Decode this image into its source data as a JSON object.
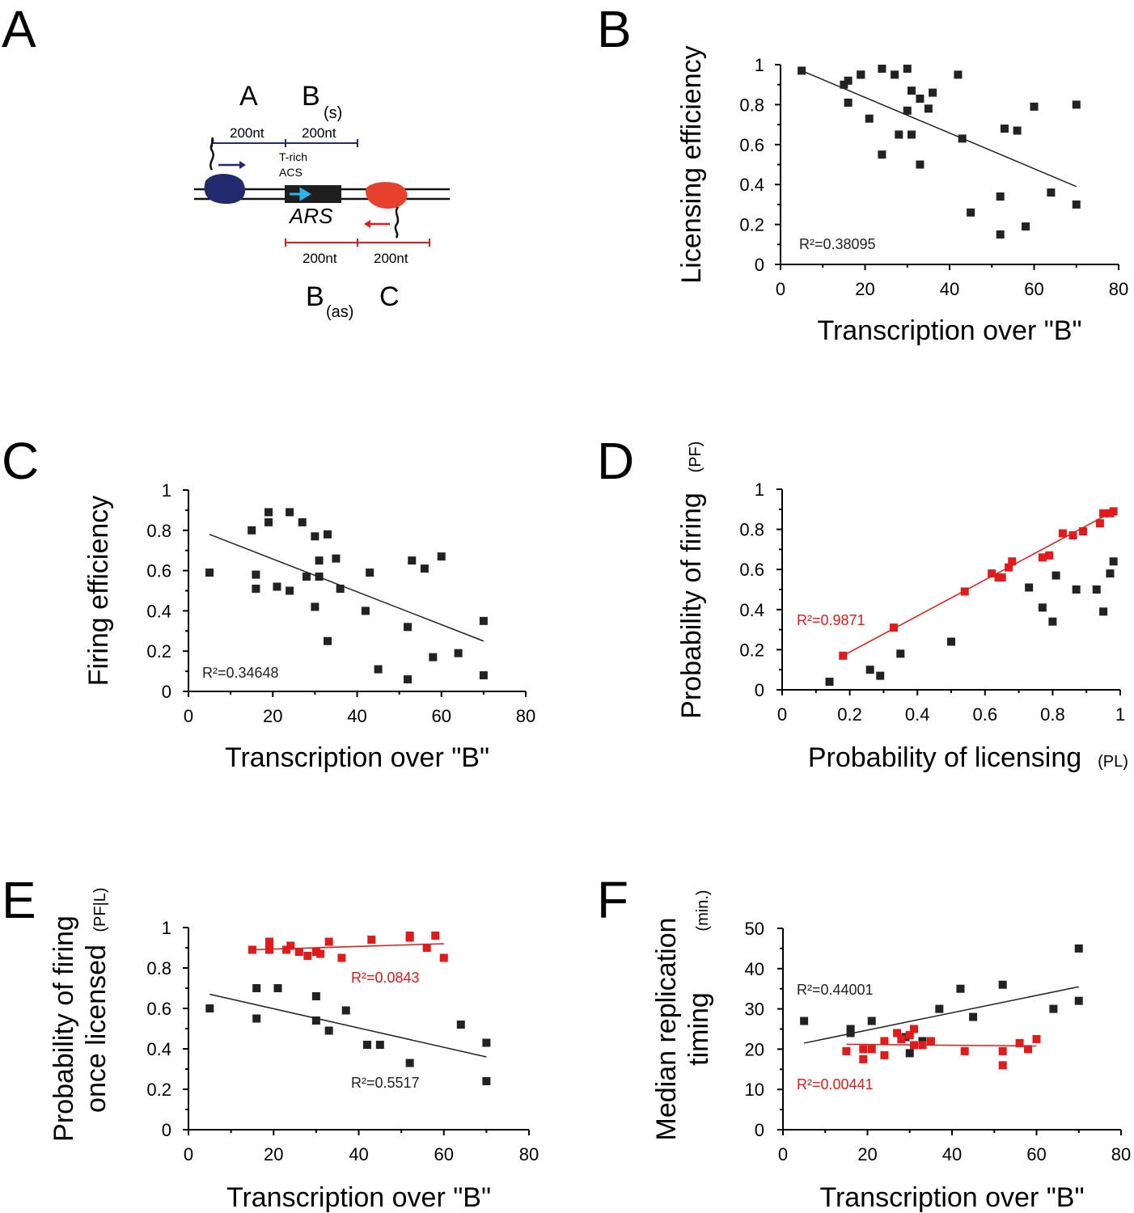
{
  "panel_letters": [
    "A",
    "B",
    "C",
    "D",
    "E",
    "F"
  ],
  "diagram": {
    "top_labels": [
      "A",
      "B",
      "(s)"
    ],
    "segment_labels_top": [
      "200nt",
      "200nt"
    ],
    "element_labels": [
      "T-rich",
      "ACS"
    ],
    "ars_label": "ARS",
    "segment_labels_bottom": [
      "200nt",
      "200nt"
    ],
    "bottom_labels": [
      "B",
      "(as)",
      "C"
    ],
    "colors": {
      "left_polymerase": "#232a6e",
      "right_polymerase": "#e5412d",
      "acs_arrow": "#29b6ea",
      "top_line": "#232a6e",
      "bottom_line": "#e01b1b"
    }
  },
  "chart_data": [
    {
      "id": "B",
      "type": "scatter",
      "xlabel": "Transcription over \"B\"",
      "ylabel": "Licensing efficiency",
      "xlim": [
        0,
        80
      ],
      "ylim": [
        0,
        1
      ],
      "xticks": [
        "0",
        "20",
        "40",
        "60",
        "80"
      ],
      "yticks": [
        "0",
        "0.2",
        "0.4",
        "0.6",
        "0.8",
        "1"
      ],
      "series": [
        {
          "name": "all",
          "color": "#222222",
          "x": [
            5,
            15,
            16,
            16,
            19,
            19,
            21,
            24,
            24,
            27,
            28,
            30,
            30,
            31,
            31,
            33,
            33,
            35,
            36,
            42,
            43,
            45,
            52,
            52,
            53,
            56,
            58,
            60,
            64,
            70,
            70
          ],
          "y": [
            0.97,
            0.9,
            0.92,
            0.81,
            0.95,
            0.95,
            0.73,
            0.98,
            0.55,
            0.95,
            0.65,
            0.77,
            0.98,
            0.87,
            0.65,
            0.83,
            0.5,
            0.78,
            0.86,
            0.95,
            0.63,
            0.26,
            0.34,
            0.15,
            0.68,
            0.67,
            0.19,
            0.79,
            0.36,
            0.3,
            0.8
          ],
          "fit": [
            [
              5,
              0.97
            ],
            [
              70,
              0.39
            ]
          ],
          "r2": "R²=0.38095"
        }
      ]
    },
    {
      "id": "C",
      "type": "scatter",
      "xlabel": "Transcription over \"B\"",
      "ylabel": "Firing efficiency",
      "xlim": [
        0,
        80
      ],
      "ylim": [
        0,
        1
      ],
      "xticks": [
        "0",
        "20",
        "40",
        "60",
        "80"
      ],
      "yticks": [
        "0",
        "0.2",
        "0.4",
        "0.6",
        "0.8",
        "1"
      ],
      "series": [
        {
          "name": "all",
          "color": "#222222",
          "x": [
            5,
            15,
            16,
            16,
            19,
            19,
            21,
            24,
            24,
            27,
            28,
            30,
            30,
            31,
            31,
            33,
            33,
            35,
            36,
            42,
            43,
            45,
            52,
            52,
            53,
            56,
            58,
            60,
            64,
            70,
            70
          ],
          "y": [
            0.59,
            0.8,
            0.58,
            0.51,
            0.89,
            0.84,
            0.52,
            0.89,
            0.5,
            0.84,
            0.57,
            0.42,
            0.77,
            0.65,
            0.57,
            0.78,
            0.25,
            0.66,
            0.51,
            0.4,
            0.59,
            0.11,
            0.32,
            0.06,
            0.65,
            0.61,
            0.17,
            0.67,
            0.19,
            0.08,
            0.35
          ],
          "fit": [
            [
              5,
              0.78
            ],
            [
              70,
              0.25
            ]
          ],
          "r2": "R²=0.34648"
        }
      ]
    },
    {
      "id": "D",
      "type": "scatter",
      "xlabel": "Probability of licensing",
      "xlabel_sub": "(PL)",
      "ylabel": "Probability of firing",
      "ylabel_sub": "(PF)",
      "xlim": [
        0,
        1
      ],
      "ylim": [
        0,
        1
      ],
      "xticks": [
        "0",
        "0.2",
        "0.4",
        "0.6",
        "0.8",
        "1"
      ],
      "yticks": [
        "0",
        "0.2",
        "0.4",
        "0.6",
        "0.8",
        "1"
      ],
      "series": [
        {
          "name": "red",
          "color": "#e01b1b",
          "x": [
            0.18,
            0.33,
            0.54,
            0.62,
            0.64,
            0.65,
            0.67,
            0.68,
            0.77,
            0.79,
            0.83,
            0.86,
            0.89,
            0.94,
            0.95,
            0.97,
            0.98
          ],
          "y": [
            0.17,
            0.31,
            0.49,
            0.58,
            0.56,
            0.56,
            0.61,
            0.64,
            0.66,
            0.67,
            0.78,
            0.77,
            0.79,
            0.83,
            0.88,
            0.88,
            0.89
          ],
          "fit": [
            [
              0.18,
              0.17
            ],
            [
              0.98,
              0.89
            ]
          ],
          "r2": "R²=0.9871"
        },
        {
          "name": "black",
          "color": "#222222",
          "x": [
            0.14,
            0.26,
            0.29,
            0.35,
            0.5,
            0.73,
            0.77,
            0.8,
            0.81,
            0.87,
            0.93,
            0.95,
            0.97,
            0.98
          ],
          "y": [
            0.04,
            0.1,
            0.07,
            0.18,
            0.24,
            0.51,
            0.41,
            0.34,
            0.57,
            0.5,
            0.5,
            0.39,
            0.58,
            0.64
          ]
        }
      ]
    },
    {
      "id": "E",
      "type": "scatter",
      "xlabel": "Transcription over \"B\"",
      "ylabel_lines": [
        "Probability of firing",
        "once licensed"
      ],
      "ylabel_sub": "(PF|L)",
      "xlim": [
        0,
        80
      ],
      "ylim": [
        0,
        1
      ],
      "xticks": [
        "0",
        "20",
        "40",
        "60",
        "80"
      ],
      "yticks": [
        "0",
        "0.2",
        "0.4",
        "0.6",
        "0.8",
        "1"
      ],
      "series": [
        {
          "name": "red",
          "color": "#e01b1b",
          "x": [
            15,
            19,
            19,
            23,
            24,
            26,
            28,
            30,
            31,
            33,
            36,
            43,
            52,
            52,
            56,
            58,
            60
          ],
          "y": [
            0.89,
            0.93,
            0.89,
            0.89,
            0.91,
            0.88,
            0.86,
            0.88,
            0.87,
            0.93,
            0.85,
            0.94,
            0.95,
            0.96,
            0.9,
            0.96,
            0.85
          ],
          "fit": [
            [
              15,
              0.89
            ],
            [
              60,
              0.92
            ]
          ],
          "r2": "R²=0.0843"
        },
        {
          "name": "black",
          "color": "#222222",
          "x": [
            5,
            16,
            16,
            21,
            30,
            30,
            33,
            37,
            42,
            45,
            52,
            64,
            70,
            70
          ],
          "y": [
            0.6,
            0.7,
            0.55,
            0.7,
            0.54,
            0.66,
            0.49,
            0.59,
            0.42,
            0.42,
            0.33,
            0.52,
            0.24,
            0.43
          ],
          "fit": [
            [
              5,
              0.67
            ],
            [
              70,
              0.36
            ]
          ],
          "r2": "R²=0.5517"
        }
      ]
    },
    {
      "id": "F",
      "type": "scatter",
      "xlabel": "Transcription over \"B\"",
      "ylabel_lines": [
        "Median replication",
        "timing"
      ],
      "ylabel_sub": "(min.)",
      "xlim": [
        0,
        80
      ],
      "ylim": [
        0,
        50
      ],
      "xticks": [
        "0",
        "20",
        "40",
        "60",
        "80"
      ],
      "yticks": [
        "0",
        "10",
        "20",
        "30",
        "40",
        "50"
      ],
      "series": [
        {
          "name": "black",
          "color": "#222222",
          "x": [
            5,
            16,
            16,
            21,
            29,
            30,
            33,
            37,
            42,
            45,
            52,
            64,
            70,
            70
          ],
          "y": [
            27,
            24,
            25,
            27,
            23,
            19,
            22,
            30,
            35,
            28,
            36,
            30,
            45,
            32
          ],
          "fit": [
            [
              5,
              21.5
            ],
            [
              70,
              35.5
            ]
          ],
          "r2": "R²=0.44001"
        },
        {
          "name": "red",
          "color": "#e01b1b",
          "x": [
            15,
            19,
            19,
            21,
            24,
            24,
            27,
            28,
            30,
            31,
            31,
            33,
            35,
            43,
            52,
            52,
            56,
            58,
            60
          ],
          "y": [
            19.5,
            17.5,
            20,
            20,
            18.5,
            22,
            24,
            22.5,
            23.5,
            25,
            21,
            21,
            22,
            19.5,
            19.5,
            16,
            21.5,
            20,
            22.5
          ],
          "fit": [
            [
              15,
              21.2
            ],
            [
              60,
              20.8
            ]
          ],
          "r2": "R²=0.00441"
        }
      ]
    }
  ]
}
